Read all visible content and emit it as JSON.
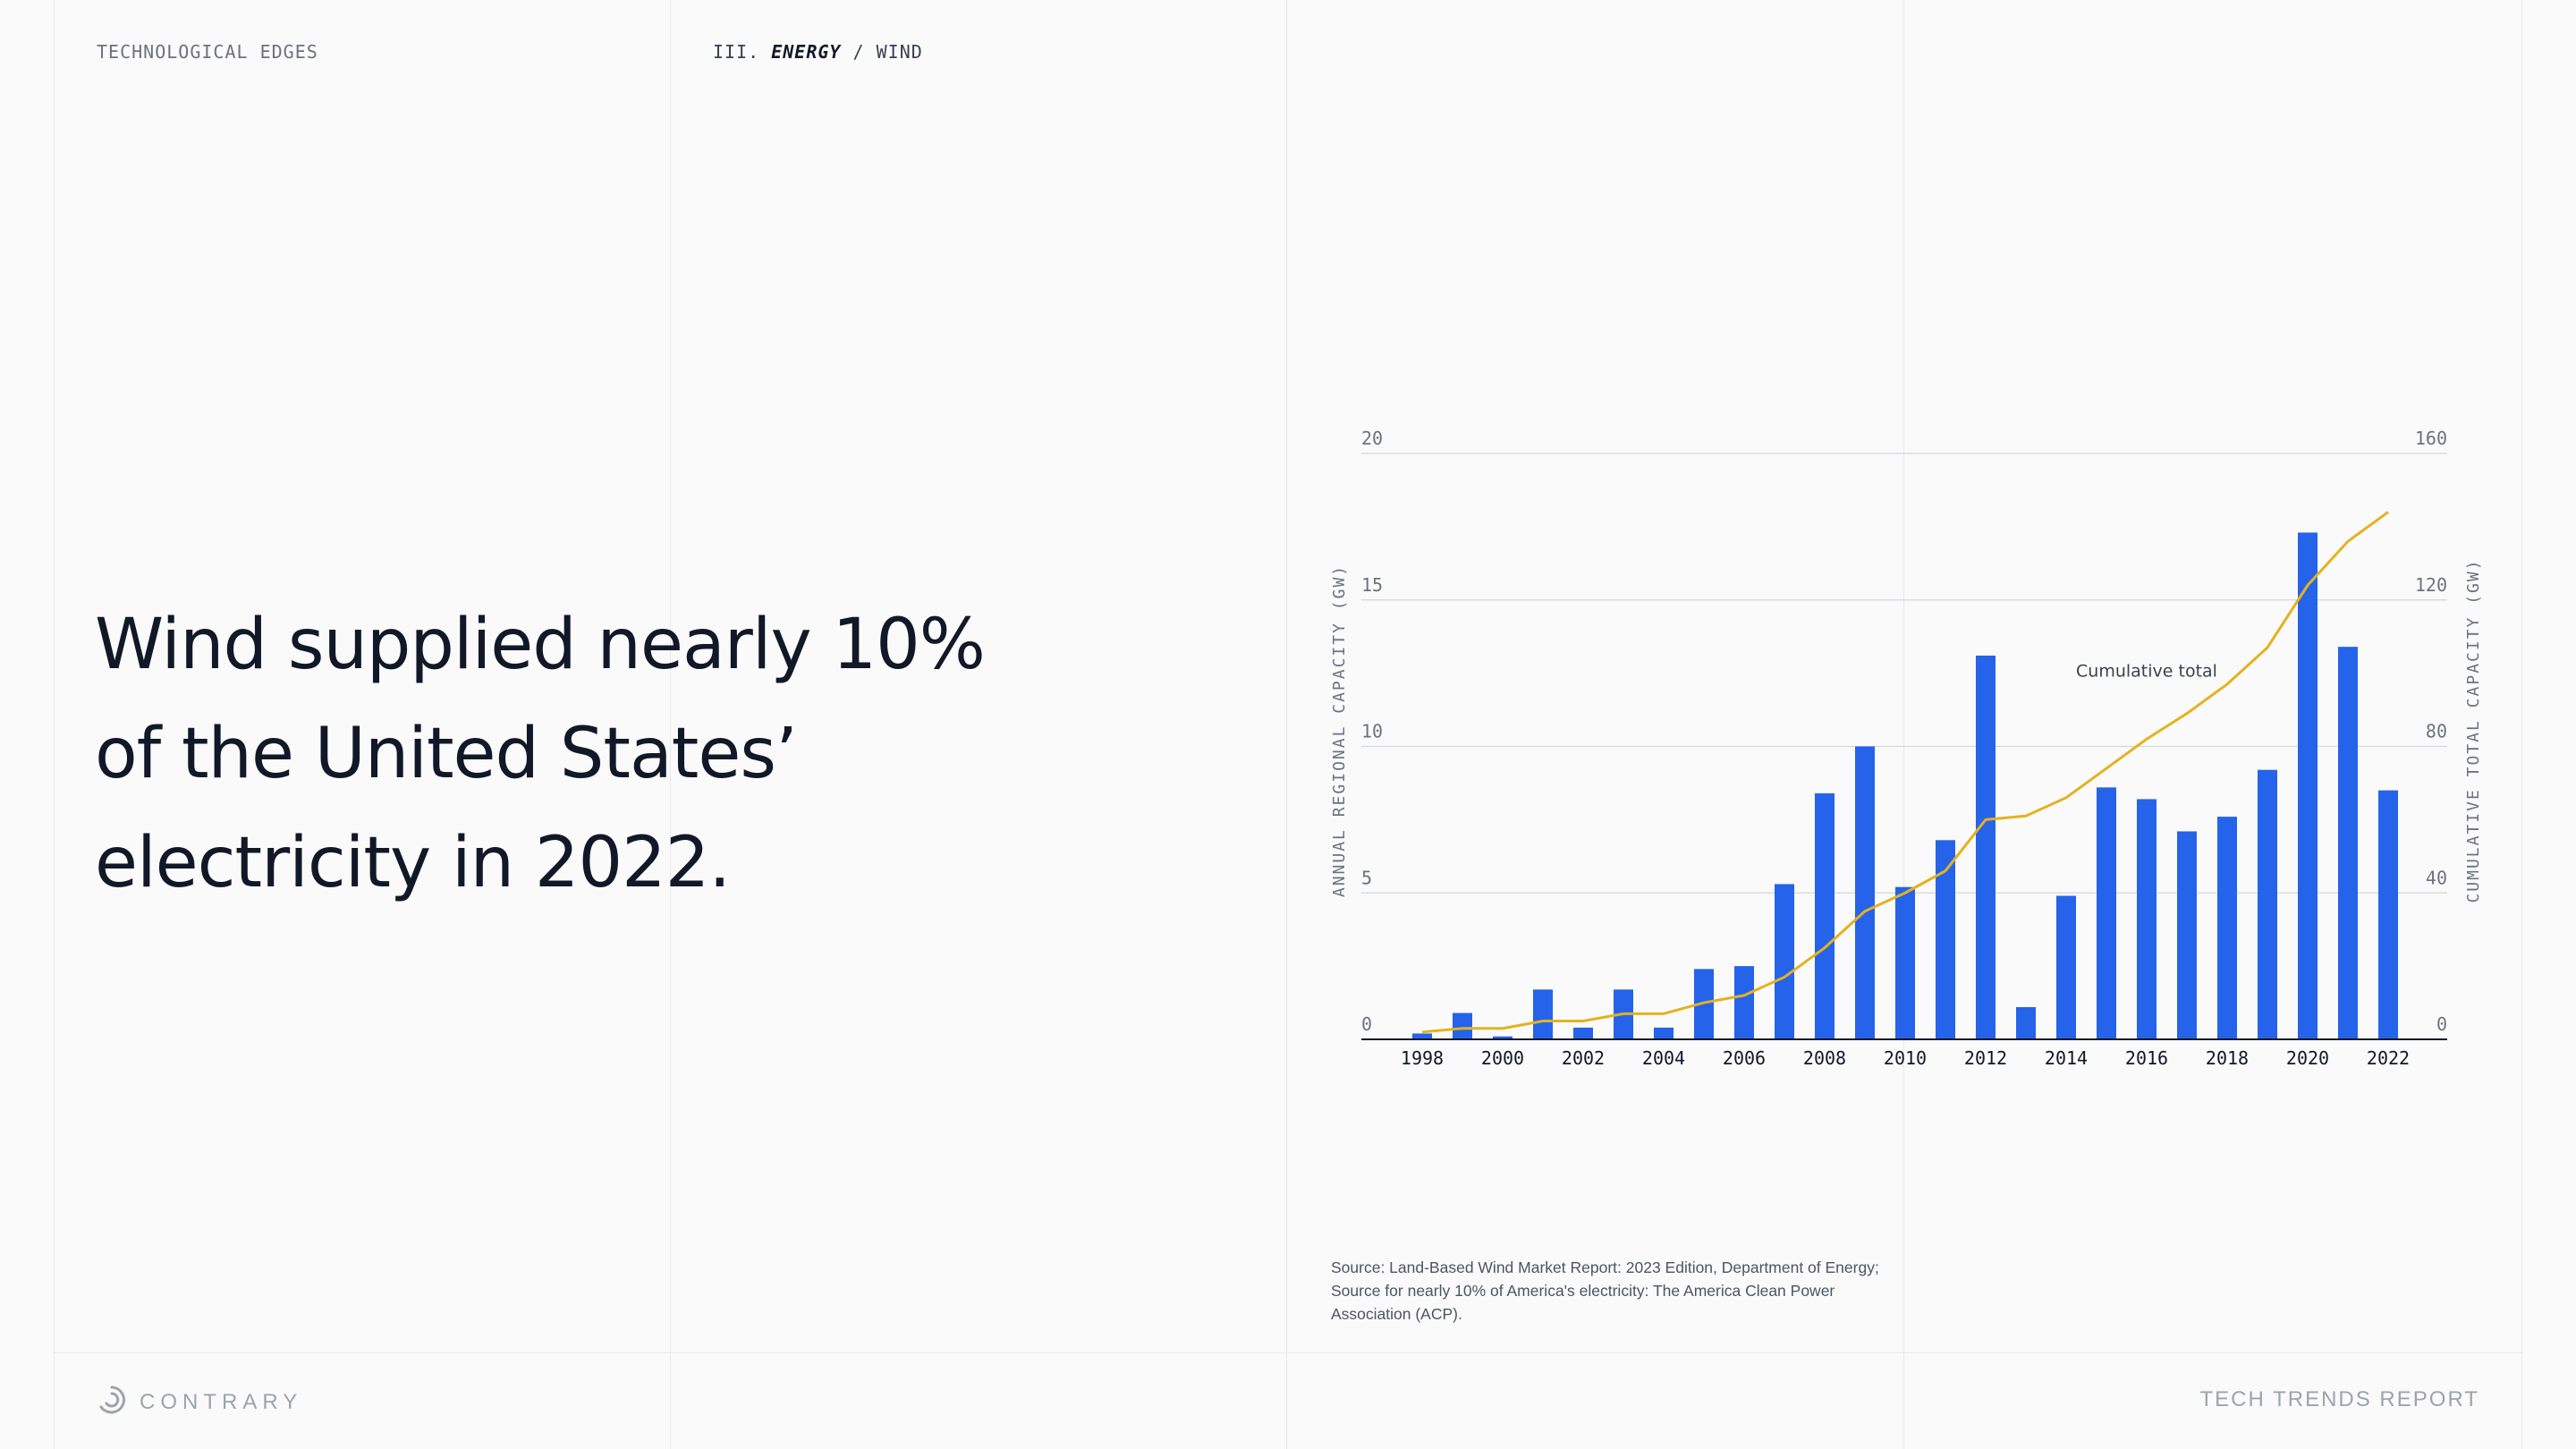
{
  "header": {
    "section_label": "TECHNOLOGICAL EDGES",
    "breadcrumb": {
      "numeral": "III.",
      "active": "ENERGY",
      "separator": "/",
      "current": "WIND"
    }
  },
  "headline": "Wind supplied nearly 10% of the United States’ electricity in 2022.",
  "chart_data": {
    "type": "bar",
    "x": [
      1998,
      1999,
      2000,
      2001,
      2002,
      2003,
      2004,
      2005,
      2006,
      2007,
      2008,
      2009,
      2010,
      2011,
      2012,
      2013,
      2014,
      2015,
      2016,
      2017,
      2018,
      2019,
      2020,
      2021,
      2022
    ],
    "x_tick_labels": [
      "1998",
      "2000",
      "2002",
      "2004",
      "2006",
      "2008",
      "2010",
      "2012",
      "2014",
      "2016",
      "2018",
      "2020",
      "2022"
    ],
    "series": [
      {
        "type": "bar",
        "axis": "left",
        "color": "#2563eb",
        "values": [
          0.2,
          0.9,
          0.1,
          1.7,
          0.4,
          1.7,
          0.4,
          2.4,
          2.5,
          5.3,
          8.4,
          10.0,
          5.2,
          6.8,
          13.1,
          1.1,
          4.9,
          8.6,
          8.2,
          7.1,
          7.6,
          9.2,
          17.3,
          13.4,
          8.5
        ]
      },
      {
        "type": "line",
        "axis": "right",
        "name": "Cumulative total",
        "color": "#e3b21f",
        "values": [
          2,
          3,
          3,
          5,
          5,
          7,
          7,
          10,
          12,
          17,
          25,
          35,
          40,
          46,
          60,
          61,
          66,
          74,
          82,
          89,
          97,
          107,
          124,
          136,
          144
        ]
      }
    ],
    "left_axis": {
      "label": "ANNUAL REGIONAL CAPACITY (GW)",
      "min": 0,
      "max": 20,
      "ticks": [
        0,
        5,
        10,
        15,
        20
      ]
    },
    "right_axis": {
      "label": "CUMULATIVE TOTAL CAPACITY (GW)",
      "min": 0,
      "max": 160,
      "ticks": [
        0,
        40,
        80,
        120,
        160
      ]
    },
    "annotation": {
      "text": "Cumulative total",
      "x": 2016,
      "y_right": 99
    },
    "grid": "horizontal"
  },
  "source_note": "Source: Land-Based Wind Market Report: 2023 Edition, Department of Energy; Source for nearly 10% of America's electricity: The America Clean Power Association (ACP).",
  "footer": {
    "brand": "CONTRARY",
    "report": "TECH TRENDS REPORT"
  },
  "colors": {
    "bar": "#2563eb",
    "line": "#e3b21f",
    "text": "#111827",
    "muted": "#9ca3af"
  },
  "icons": {
    "brand_logo": "contrary-swirl-icon"
  }
}
